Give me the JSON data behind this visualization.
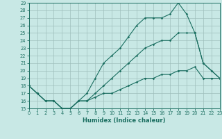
{
  "xlabel": "Humidex (Indice chaleur)",
  "bg_color": "#c8e8e5",
  "grid_color": "#9fbfbc",
  "line_color": "#1a6e60",
  "xlim": [
    0,
    23
  ],
  "ylim": [
    15,
    29
  ],
  "yticks": [
    15,
    16,
    17,
    18,
    19,
    20,
    21,
    22,
    23,
    24,
    25,
    26,
    27,
    28,
    29
  ],
  "xticks": [
    0,
    1,
    2,
    3,
    4,
    5,
    6,
    7,
    8,
    9,
    10,
    11,
    12,
    13,
    14,
    15,
    16,
    17,
    18,
    19,
    20,
    21,
    22,
    23
  ],
  "line1_x": [
    0,
    1,
    2,
    3,
    4,
    5,
    6,
    7,
    8,
    9,
    10,
    11,
    12,
    13,
    14,
    15,
    16,
    17,
    18,
    19,
    20,
    21,
    22,
    23
  ],
  "line1_y": [
    18,
    17,
    16,
    16,
    15,
    15,
    16,
    17,
    19,
    21,
    22,
    23,
    24.5,
    26,
    27,
    27,
    27,
    27.5,
    29,
    27.5,
    25,
    21,
    20,
    19
  ],
  "line2_x": [
    0,
    1,
    2,
    3,
    4,
    5,
    6,
    7,
    8,
    9,
    10,
    11,
    12,
    13,
    14,
    15,
    16,
    17,
    18,
    19,
    20,
    21,
    22,
    23
  ],
  "line2_y": [
    18,
    17,
    16,
    16,
    15,
    15,
    16,
    16,
    17,
    18,
    19,
    20,
    21,
    22,
    23,
    23.5,
    24,
    24,
    25,
    25,
    25,
    21,
    20,
    19
  ],
  "line3_x": [
    0,
    1,
    2,
    3,
    4,
    5,
    6,
    7,
    8,
    9,
    10,
    11,
    12,
    13,
    14,
    15,
    16,
    17,
    18,
    19,
    20,
    21,
    22,
    23
  ],
  "line3_y": [
    18,
    17,
    16,
    16,
    15,
    15,
    16,
    16,
    16.5,
    17,
    17,
    17.5,
    18,
    18.5,
    19,
    19,
    19.5,
    19.5,
    20,
    20,
    20.5,
    19,
    19,
    19
  ]
}
